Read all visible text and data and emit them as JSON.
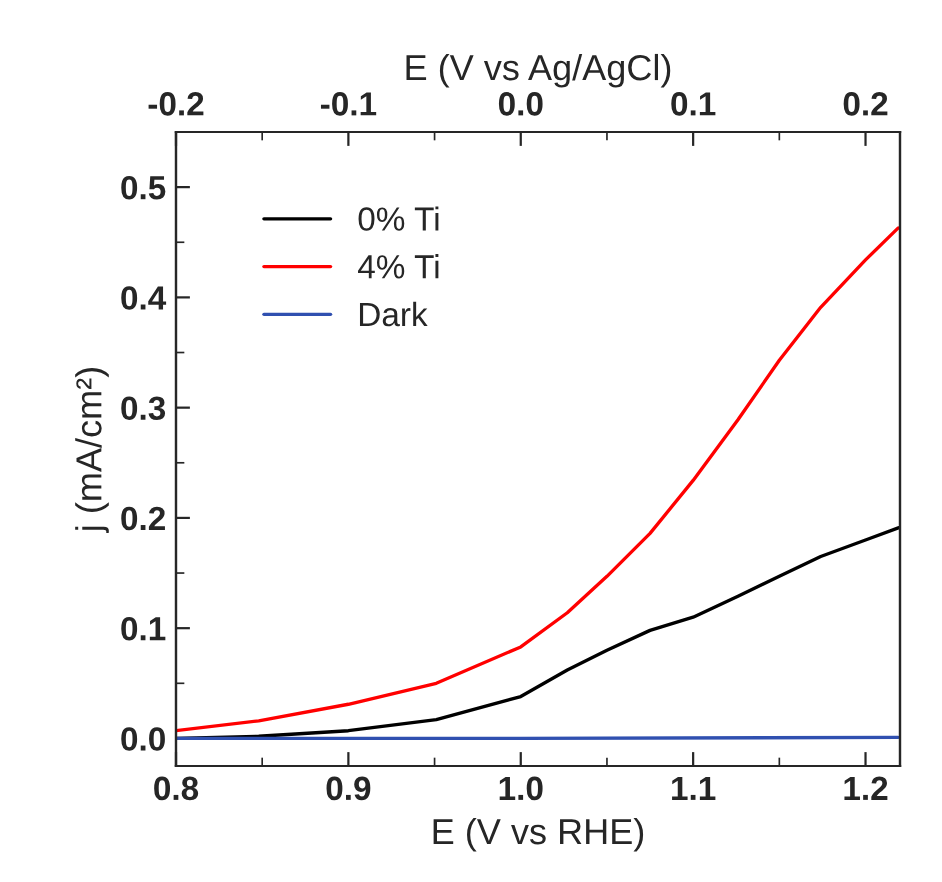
{
  "chart_data": {
    "type": "line",
    "xlabel": "E (V vs RHE)",
    "ylabel": "j (mA/cm²)",
    "x2label": "E (V vs Ag/AgCl)",
    "xlim": [
      0.8,
      1.22
    ],
    "xticks": [
      0.8,
      0.9,
      {
        "value": 1,
        "label": "1.0"
      },
      1.1,
      1.2
    ],
    "x2lim": [
      -0.2,
      0.22
    ],
    "x2ticks": [
      -0.2,
      -0.1,
      {
        "value": 0,
        "label": "0.0"
      },
      0.1,
      0.2
    ],
    "ylim": [
      -0.025,
      0.55
    ],
    "yticks": [
      {
        "value": 0,
        "label": "0.0"
      },
      0.1,
      0.2,
      0.3,
      0.4,
      0.5
    ],
    "legend": "top left",
    "grid": false,
    "marker": "none",
    "line_style": "solid",
    "series": [
      {
        "name": "0% Ti",
        "color": "#000000",
        "x": [
          0.8,
          0.848,
          0.9,
          0.951,
          1.0,
          1.027,
          1.05,
          1.075,
          1.1,
          1.126,
          1.15,
          1.174,
          1.2,
          1.219
        ],
        "values": [
          0.0,
          0.002,
          0.007,
          0.017,
          0.038,
          0.062,
          0.08,
          0.098,
          0.11,
          0.129,
          0.147,
          0.165,
          0.18,
          0.191
        ]
      },
      {
        "name": "4% Ti",
        "color": "#ff0000",
        "x": [
          0.8,
          0.848,
          0.9,
          0.951,
          1.0,
          1.027,
          1.05,
          1.075,
          1.1,
          1.126,
          1.15,
          1.174,
          1.2,
          1.219
        ],
        "values": [
          0.007,
          0.016,
          0.031,
          0.05,
          0.083,
          0.114,
          0.147,
          0.186,
          0.234,
          0.289,
          0.343,
          0.391,
          0.434,
          0.463
        ]
      },
      {
        "name": "Dark",
        "color": "#3050b0",
        "x": [
          0.8,
          1.0,
          1.219
        ],
        "values": [
          0.0,
          0.0,
          0.001
        ]
      }
    ]
  }
}
